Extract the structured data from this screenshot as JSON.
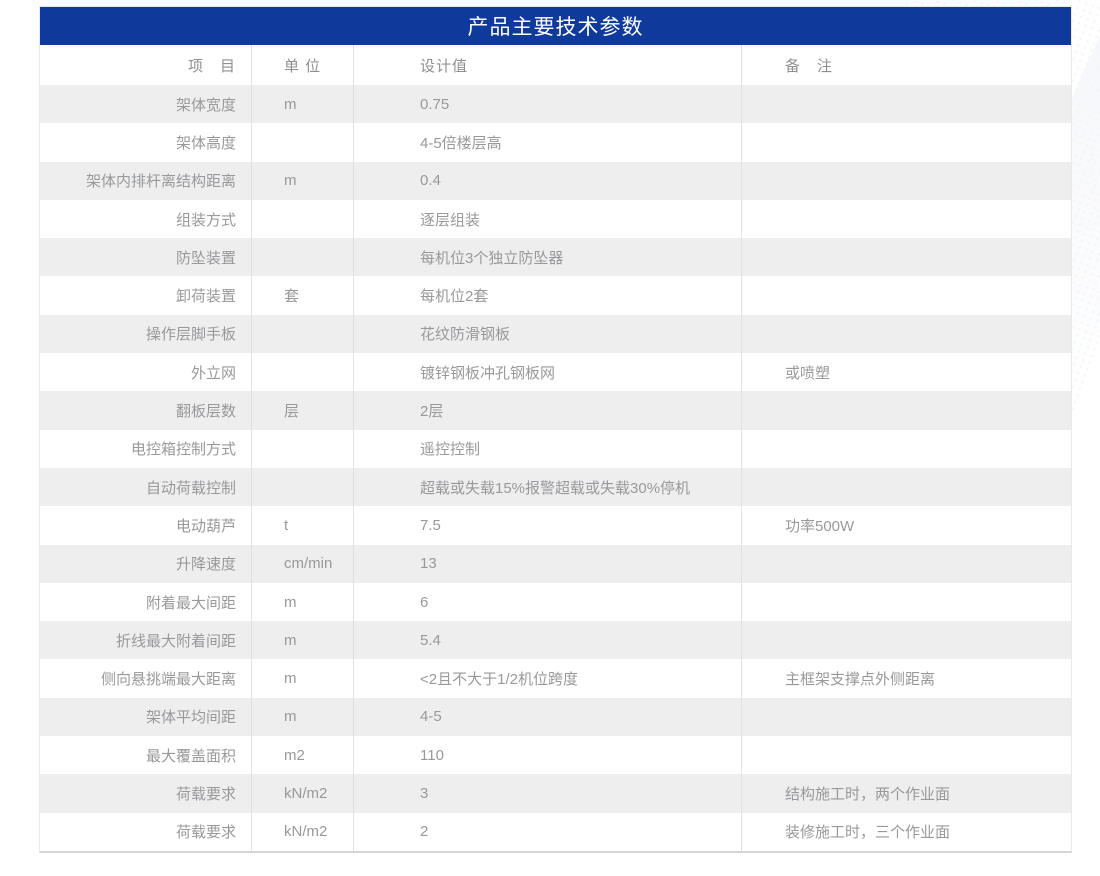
{
  "header": {
    "title": "产品主要技术参数"
  },
  "table": {
    "columns": [
      {
        "key": "item",
        "label": "项　目"
      },
      {
        "key": "unit",
        "label": "单 位"
      },
      {
        "key": "value",
        "label": "设计值"
      },
      {
        "key": "remark",
        "label": "备　注"
      }
    ],
    "rows": [
      {
        "item": "架体宽度",
        "unit": "m",
        "value": "0.75",
        "remark": ""
      },
      {
        "item": "架体高度",
        "unit": "",
        "value": "4-5倍楼层高",
        "remark": ""
      },
      {
        "item": "架体内排杆离结构距离",
        "unit": "m",
        "value": "0.4",
        "remark": ""
      },
      {
        "item": "组装方式",
        "unit": "",
        "value": "逐层组装",
        "remark": ""
      },
      {
        "item": "防坠装置",
        "unit": "",
        "value": "每机位3个独立防坠器",
        "remark": ""
      },
      {
        "item": "卸荷装置",
        "unit": "套",
        "value": "每机位2套",
        "remark": ""
      },
      {
        "item": "操作层脚手板",
        "unit": "",
        "value": "花纹防滑钢板",
        "remark": ""
      },
      {
        "item": "外立网",
        "unit": "",
        "value": "镀锌钢板冲孔钢板网",
        "remark": "或喷塑"
      },
      {
        "item": "翻板层数",
        "unit": "层",
        "value": "2层",
        "remark": ""
      },
      {
        "item": "电控箱控制方式",
        "unit": "",
        "value": "遥控控制",
        "remark": ""
      },
      {
        "item": "自动荷载控制",
        "unit": "",
        "value": "超载或失载15%报警超载或失载30%停机",
        "remark": ""
      },
      {
        "item": "电动葫芦",
        "unit": "t",
        "value": "7.5",
        "remark": "功率500W"
      },
      {
        "item": "升降速度",
        "unit": "cm/min",
        "value": "13",
        "remark": ""
      },
      {
        "item": "附着最大间距",
        "unit": "m",
        "value": "6",
        "remark": ""
      },
      {
        "item": "折线最大附着间距",
        "unit": "m",
        "value": "5.4",
        "remark": ""
      },
      {
        "item": "侧向悬挑端最大距离",
        "unit": "m",
        "value": "<2且不大于1/2机位跨度",
        "remark": "主框架支撑点外侧距离"
      },
      {
        "item": "架体平均间距",
        "unit": "m",
        "value": "4-5",
        "remark": ""
      },
      {
        "item": "最大覆盖面积",
        "unit": "m2",
        "value": "110",
        "remark": ""
      },
      {
        "item": "荷载要求",
        "unit": "kN/m2",
        "value": "3",
        "remark": "结构施工时，两个作业面"
      },
      {
        "item": "荷载要求",
        "unit": "kN/m2",
        "value": "2",
        "remark": "装修施工时，三个作业面"
      }
    ]
  },
  "colors": {
    "header_blue": "#0f3a9c",
    "title_text": "#ffffff",
    "stripe_gray": "#eeeeef",
    "divider": "#e1e1e2",
    "text_gray": "#98999b"
  }
}
